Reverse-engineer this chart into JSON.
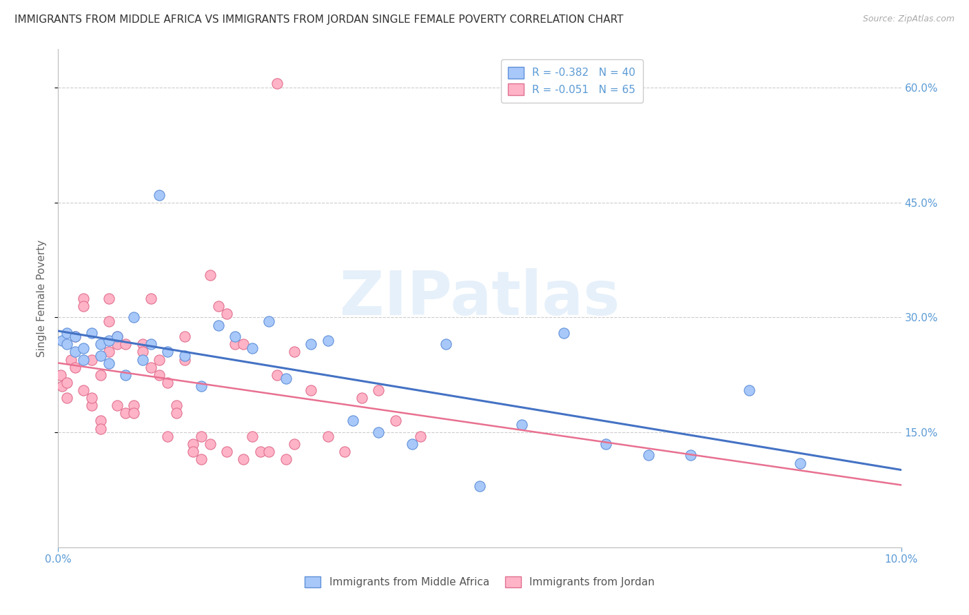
{
  "title": "IMMIGRANTS FROM MIDDLE AFRICA VS IMMIGRANTS FROM JORDAN SINGLE FEMALE POVERTY CORRELATION CHART",
  "source": "Source: ZipAtlas.com",
  "ylabel": "Single Female Poverty",
  "ytick_values": [
    0.15,
    0.3,
    0.45,
    0.6
  ],
  "xlim": [
    0.0,
    0.1
  ],
  "ylim": [
    0.0,
    0.65
  ],
  "watermark": "ZIPatlas",
  "legend_blue_label": "R = -0.382   N = 40",
  "legend_pink_label": "R = -0.051   N = 65",
  "bottom_label_blue": "Immigrants from Middle Africa",
  "bottom_label_pink": "Immigrants from Jordan",
  "blue_x": [
    0.0005,
    0.001,
    0.001,
    0.002,
    0.002,
    0.003,
    0.003,
    0.004,
    0.005,
    0.005,
    0.006,
    0.006,
    0.007,
    0.008,
    0.009,
    0.01,
    0.011,
    0.012,
    0.013,
    0.015,
    0.017,
    0.019,
    0.021,
    0.023,
    0.025,
    0.027,
    0.03,
    0.032,
    0.035,
    0.038,
    0.042,
    0.046,
    0.05,
    0.055,
    0.06,
    0.065,
    0.07,
    0.075,
    0.082,
    0.088
  ],
  "blue_y": [
    0.27,
    0.265,
    0.28,
    0.255,
    0.275,
    0.26,
    0.245,
    0.28,
    0.265,
    0.25,
    0.27,
    0.24,
    0.275,
    0.225,
    0.3,
    0.245,
    0.265,
    0.46,
    0.255,
    0.25,
    0.21,
    0.29,
    0.275,
    0.26,
    0.295,
    0.22,
    0.265,
    0.27,
    0.165,
    0.15,
    0.135,
    0.265,
    0.08,
    0.16,
    0.28,
    0.135,
    0.12,
    0.12,
    0.205,
    0.11
  ],
  "pink_x": [
    0.0003,
    0.0005,
    0.001,
    0.001,
    0.0015,
    0.002,
    0.002,
    0.003,
    0.003,
    0.003,
    0.004,
    0.004,
    0.004,
    0.005,
    0.005,
    0.005,
    0.006,
    0.006,
    0.006,
    0.007,
    0.007,
    0.007,
    0.008,
    0.008,
    0.009,
    0.009,
    0.01,
    0.01,
    0.011,
    0.011,
    0.012,
    0.012,
    0.013,
    0.013,
    0.014,
    0.014,
    0.015,
    0.015,
    0.016,
    0.016,
    0.017,
    0.017,
    0.018,
    0.019,
    0.02,
    0.021,
    0.022,
    0.023,
    0.024,
    0.025,
    0.026,
    0.027,
    0.028,
    0.03,
    0.032,
    0.034,
    0.036,
    0.038,
    0.04,
    0.043,
    0.018,
    0.02,
    0.022,
    0.026,
    0.028
  ],
  "pink_y": [
    0.225,
    0.21,
    0.215,
    0.195,
    0.245,
    0.235,
    0.275,
    0.325,
    0.315,
    0.205,
    0.185,
    0.195,
    0.245,
    0.225,
    0.165,
    0.155,
    0.325,
    0.295,
    0.255,
    0.275,
    0.265,
    0.185,
    0.175,
    0.265,
    0.185,
    0.175,
    0.265,
    0.255,
    0.325,
    0.235,
    0.245,
    0.225,
    0.215,
    0.145,
    0.185,
    0.175,
    0.275,
    0.245,
    0.135,
    0.125,
    0.145,
    0.115,
    0.135,
    0.315,
    0.125,
    0.265,
    0.115,
    0.145,
    0.125,
    0.125,
    0.605,
    0.115,
    0.135,
    0.205,
    0.145,
    0.125,
    0.195,
    0.205,
    0.165,
    0.145,
    0.355,
    0.305,
    0.265,
    0.225,
    0.255
  ],
  "blue_face": "#a8c8fa",
  "blue_edge": "#6090d8",
  "pink_face": "#ffb3c6",
  "pink_edge": "#e07090",
  "blue_line_col": "#4472c4",
  "pink_line_col": "#e87090",
  "grid_color": "#cccccc",
  "bg": "#ffffff",
  "title_color": "#333333",
  "axis_tick_color": "#5b9bd5",
  "ylabel_color": "#666666",
  "scatter_size": 120,
  "legend_text_color": "#5b9bd5"
}
